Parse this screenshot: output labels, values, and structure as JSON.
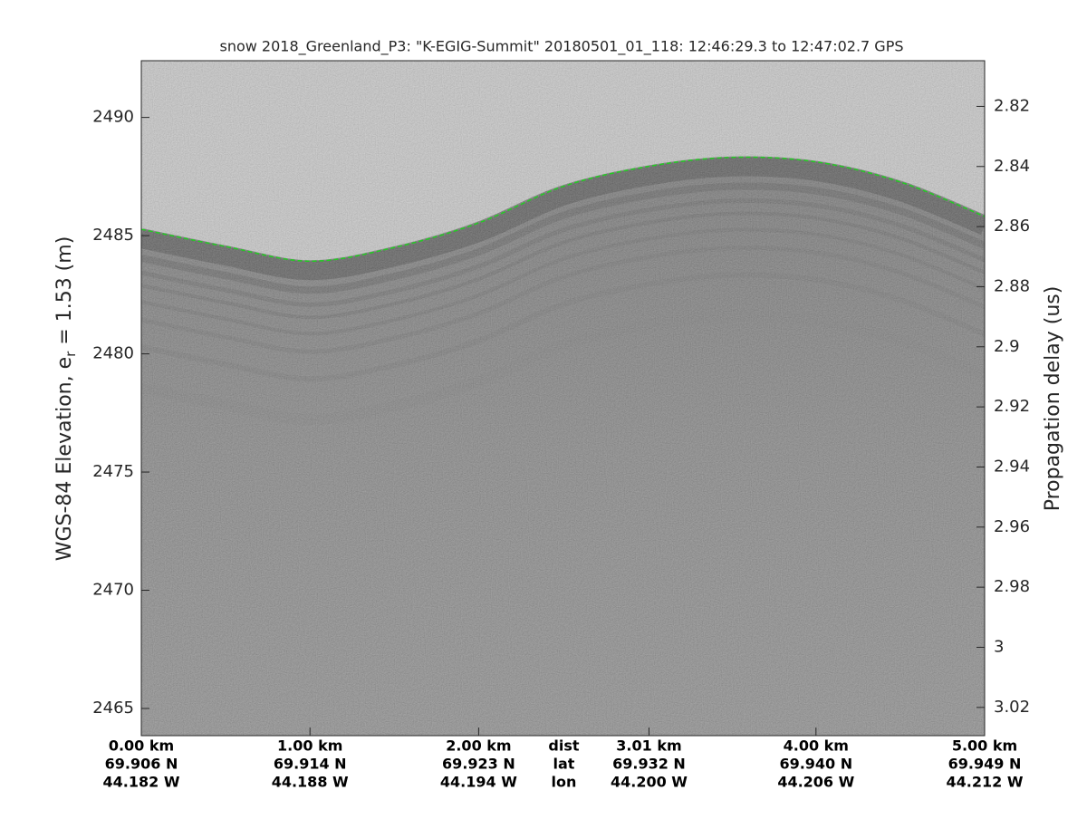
{
  "chart_data": {
    "type": "echogram",
    "title": "snow 2018_Greenland_P3: \"K-EGIG-Summit\"  20180501_01_118: 12:46:29.3 to 12:47:02.7 GPS",
    "ylabel": [
      "WGS-84 Elevation, e",
      "r",
      " = 1.53 (m)"
    ],
    "y2label": "Propagation delay (us)",
    "xlim": [
      0,
      5
    ],
    "xticks": [
      {
        "value": 0,
        "label": "0.00 km"
      },
      {
        "value": 1,
        "label": "1.00 km"
      },
      {
        "value": 2,
        "label": "2.00 km"
      },
      {
        "value": 3.01,
        "label": "3.01 km"
      },
      {
        "value": 4,
        "label": "4.00 km"
      },
      {
        "value": 5,
        "label": "5.00 km"
      }
    ],
    "lat_labels": [
      "69.906 N",
      "69.914 N",
      "69.923 N",
      "69.932 N",
      "69.940 N",
      "69.949 N"
    ],
    "lon_labels": [
      "44.182 W",
      "44.188 W",
      "44.194 W",
      "44.200 W",
      "44.206 W",
      "44.212 W"
    ],
    "row_labels": [
      "dist",
      "lat",
      "lon"
    ],
    "ylim": [
      2463.85,
      2492.4
    ],
    "yticks": [
      2465,
      2470,
      2475,
      2480,
      2485,
      2490
    ],
    "y2lim": [
      3.0294,
      2.8048
    ],
    "y2ticks": [
      2.82,
      2.84,
      2.86,
      2.88,
      2.9,
      2.92,
      2.94,
      2.96,
      2.98,
      3,
      3.02
    ],
    "surface": {
      "color": "#22cc22",
      "x": [
        0,
        0.5,
        1,
        1.5,
        2,
        2.5,
        3,
        3.5,
        4,
        4.5,
        5
      ],
      "values": [
        2485.27,
        2484.54,
        2483.92,
        2484.5,
        2485.54,
        2487.08,
        2487.92,
        2488.31,
        2488.12,
        2487.27,
        2485.81
      ]
    }
  }
}
